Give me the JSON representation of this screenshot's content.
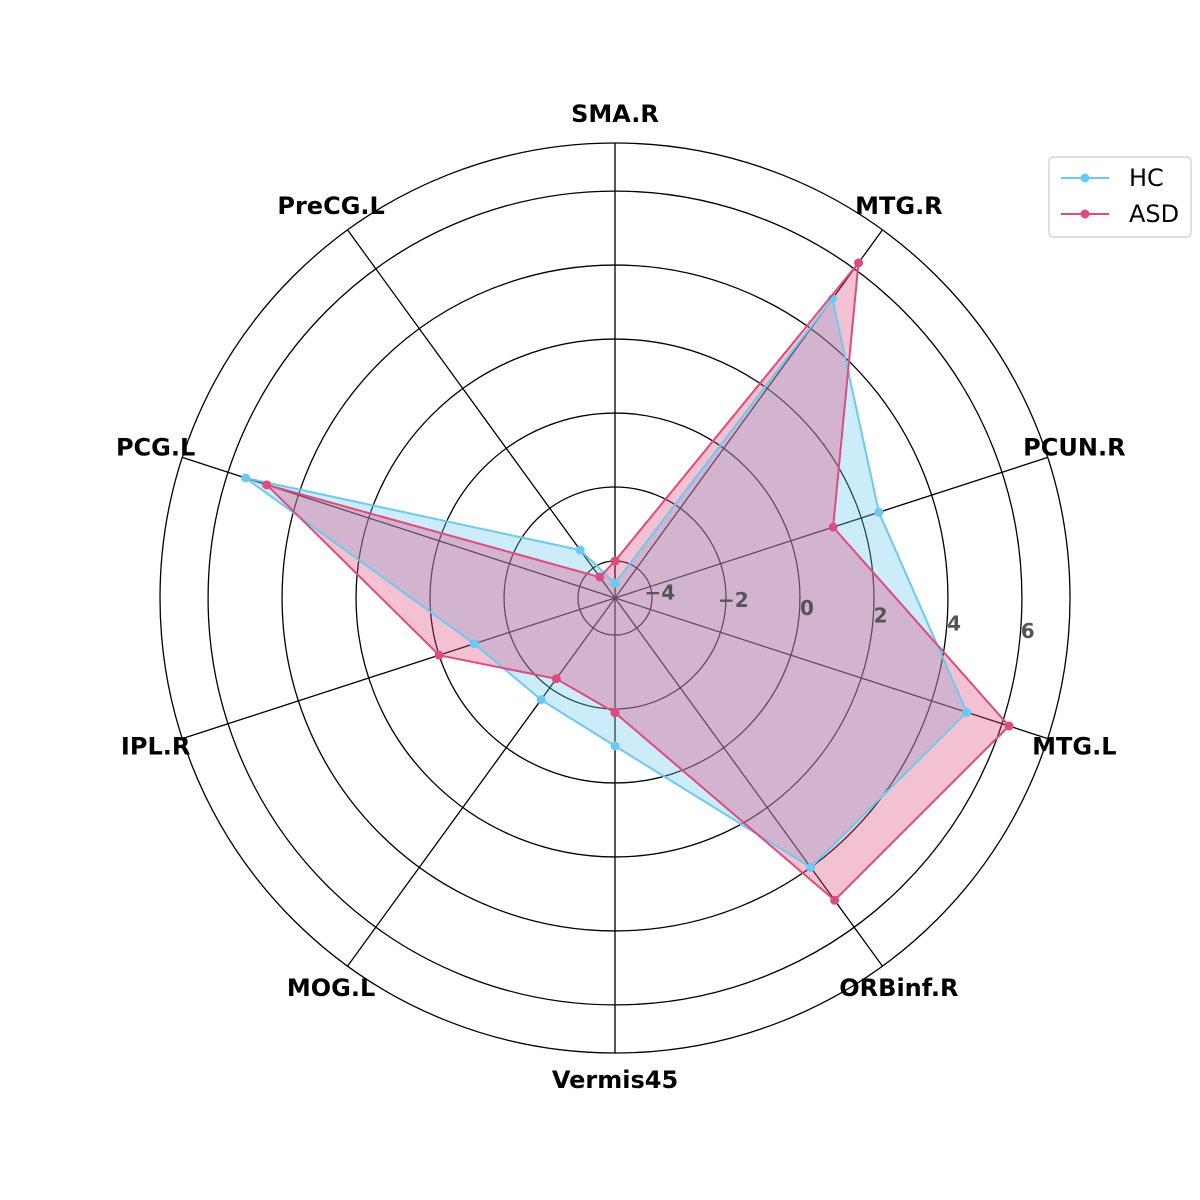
{
  "chart_data": {
    "type": "radar",
    "title": "",
    "categories": [
      "SMA.R",
      "MTG.R",
      "PCUN.R",
      "MTG.L",
      "ORBinf.R",
      "Vermis45",
      "MOG.L",
      "IPL.R",
      "PCG.L",
      "PreCG.L"
    ],
    "rlim": [
      -5,
      7.3
    ],
    "rticks": [
      -4,
      -2,
      0,
      2,
      4,
      6
    ],
    "rtick_labels": [
      "−4",
      "−2",
      "0",
      "2",
      "4",
      "6"
    ],
    "grid": true,
    "legend_position": "top-right",
    "series": [
      {
        "name": "HC",
        "color": "#6cc9ef",
        "values": [
          -4.6,
          5.0,
          2.5,
          5.0,
          4.0,
          -1.0,
          -1.6,
          -1.0,
          5.5,
          -3.4
        ]
      },
      {
        "name": "ASD",
        "color": "#dc4c7f",
        "values": [
          -4.0,
          6.2,
          1.2,
          6.2,
          5.1,
          -1.9,
          -2.3,
          0.0,
          4.9,
          -4.3
        ]
      }
    ]
  }
}
